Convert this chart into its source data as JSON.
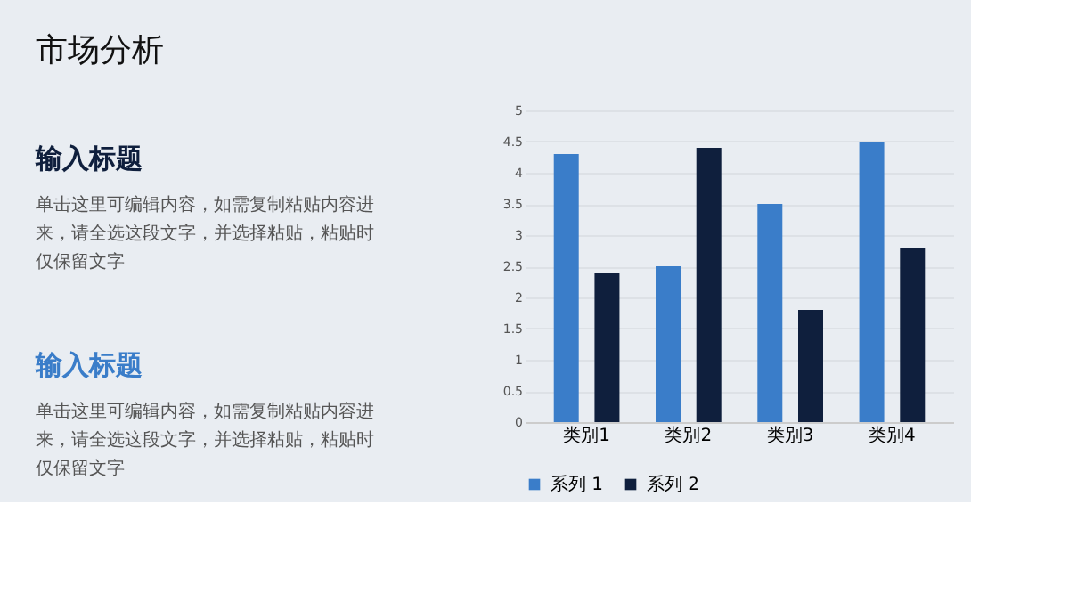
{
  "chart_data": {
    "type": "bar",
    "title": "市场分析",
    "annotations": [
      "输入标题",
      "单击这里可编辑内容，如需复制粘贴内容进来，请全选这段文字，并选择粘贴，粘贴时仅保留文字",
      "输入标题",
      "单击这里可编辑内容，如需复制粘贴内容进来，请全选这段文字，并选择粘贴，粘贴时仅保留文字"
    ],
    "categories": [
      "类别1",
      "类别2",
      "类别3",
      "类别4"
    ],
    "series": [
      {
        "name": "系列 1",
        "color": "#3a7dc9",
        "values": [
          4.3,
          2.5,
          3.5,
          4.5
        ]
      },
      {
        "name": "系列 2",
        "color": "#0f1f3d",
        "values": [
          2.4,
          4.4,
          1.8,
          2.8
        ]
      }
    ],
    "ylim": [
      0,
      5
    ],
    "yticks": [
      0,
      0.5,
      1,
      1.5,
      2,
      2.5,
      3,
      3.5,
      4,
      4.5,
      5
    ],
    "grid": "y",
    "legend": "bottom"
  }
}
